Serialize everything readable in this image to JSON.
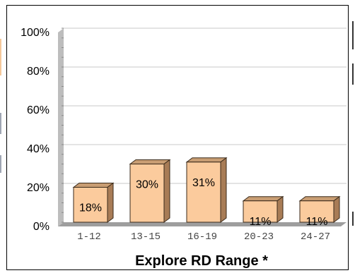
{
  "chart_data": {
    "type": "bar",
    "title": "",
    "xlabel": "Explore RD Range *",
    "ylabel": "",
    "categories": [
      "1-12",
      "13-15",
      "16-19",
      "20-23",
      "24-27"
    ],
    "values": [
      18,
      30,
      31,
      11,
      11
    ],
    "data_labels": [
      "18%",
      "30%",
      "31%",
      "11%",
      "11%"
    ],
    "yticks": [
      "0%",
      "20%",
      "40%",
      "60%",
      "80%",
      "100%"
    ],
    "ylim": [
      0,
      100
    ],
    "grid": true,
    "legend": "none",
    "colors": {
      "bar_front": "#FBCB9D",
      "bar_top": "#C89D73",
      "bar_side": "#A87C56",
      "bar_stroke": "#3A2A1A",
      "grid": "#C8C8C8",
      "wall": "#BDBDBD",
      "floor": "#9E9E9E"
    }
  },
  "page": {
    "left_strip_colors": [
      "#F5C89A",
      "#9FA6B3",
      "#9FA6B3"
    ]
  }
}
